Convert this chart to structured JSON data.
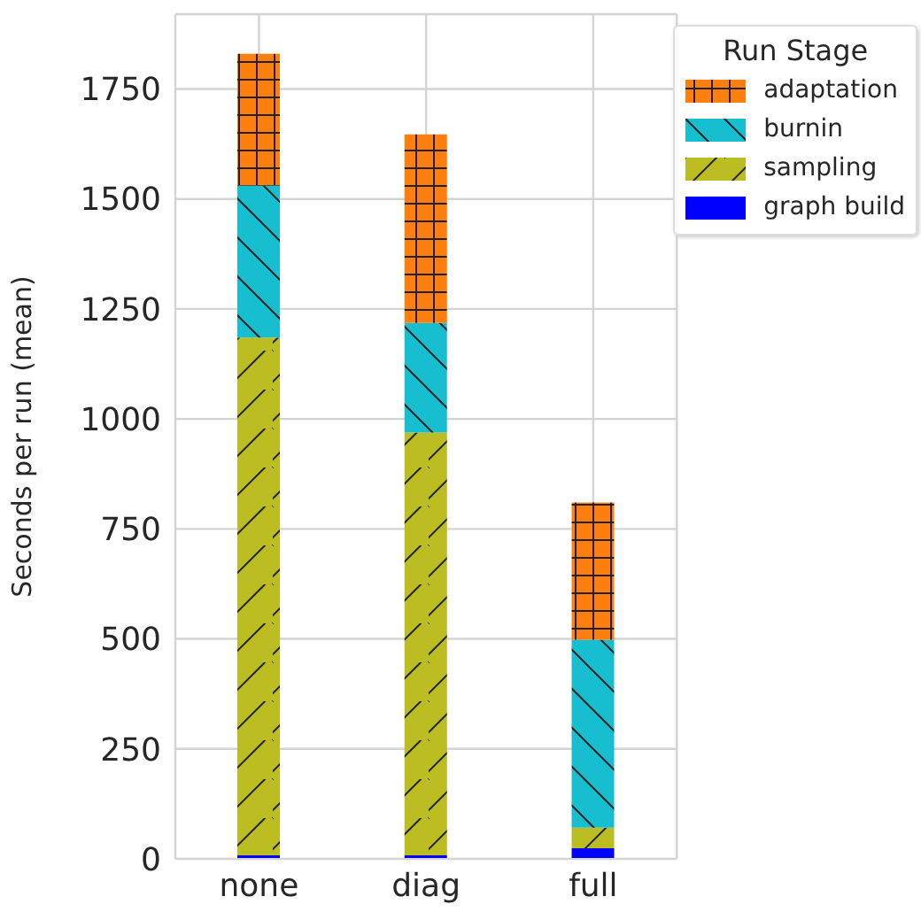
{
  "chart_data": {
    "type": "bar",
    "stacked": true,
    "ylabel": "Seconds per run (mean)",
    "legend_title": "Run Stage",
    "categories": [
      "none",
      "diag",
      "full"
    ],
    "series": [
      {
        "name": "graph build",
        "color": "#0000ff",
        "values": [
          8,
          8,
          24
        ]
      },
      {
        "name": "sampling",
        "color": "#bcbd22",
        "values": [
          1177,
          961,
          47
        ]
      },
      {
        "name": "burnin",
        "color": "#17becf",
        "values": [
          345,
          249,
          427
        ]
      },
      {
        "name": "adaptation",
        "color": "#ff7f0e",
        "values": [
          300,
          429,
          312
        ]
      }
    ],
    "ylim": [
      0,
      1920
    ],
    "yticks": [
      0,
      250,
      500,
      750,
      1000,
      1250,
      1500,
      1750
    ],
    "grid": true,
    "legend": "top right"
  }
}
